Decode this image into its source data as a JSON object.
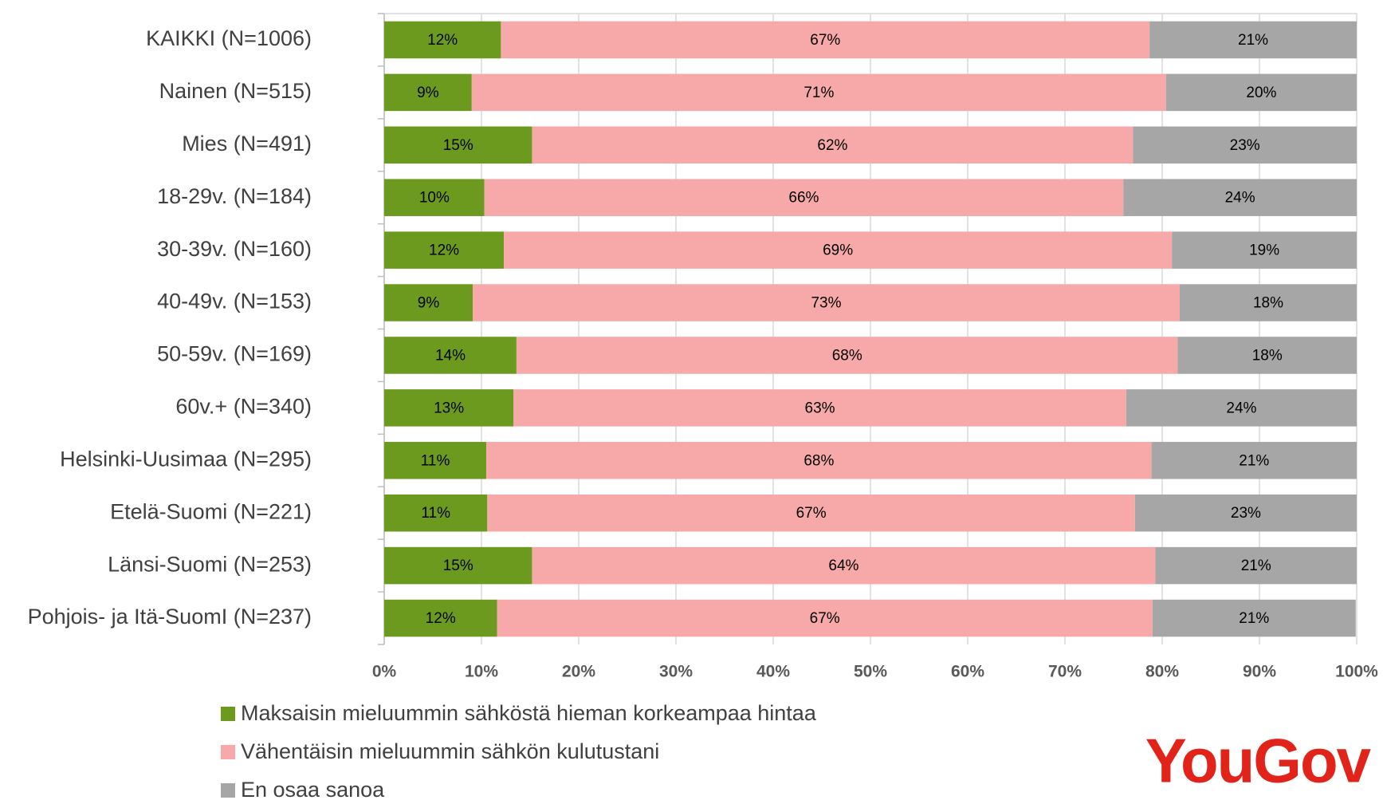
{
  "chart_data": {
    "type": "stacked-bar-horizontal",
    "categories": [
      "KAIKKI (N=1006)",
      "Nainen (N=515)",
      "Mies (N=491)",
      "18-29v. (N=184)",
      "30-39v. (N=160)",
      "40-49v. (N=153)",
      "50-59v. (N=169)",
      "60v.+ (N=340)",
      "Helsinki-Uusimaa (N=295)",
      "Etelä-Suomi (N=221)",
      "Länsi-Suomi (N=253)",
      "Pohjois- ja Itä-SuomI (N=237)"
    ],
    "series": [
      {
        "name": "Maksaisin mieluummin sähköstä hieman korkeampaa hintaa",
        "color": "#6b9a1f",
        "values": [
          12.0,
          9.0,
          15.2,
          10.3,
          12.3,
          9.1,
          13.6,
          13.3,
          10.5,
          10.6,
          15.2,
          11.6
        ],
        "value_labels": [
          "12%",
          "9%",
          "15%",
          "10%",
          "12%",
          "9%",
          "14%",
          "13%",
          "11%",
          "11%",
          "15%",
          "12%"
        ]
      },
      {
        "name": "Vähentäisin mieluummin sähkön kulutustani",
        "color": "#f6a9a8",
        "values": [
          66.7,
          71.4,
          61.8,
          65.7,
          68.7,
          72.7,
          68.0,
          63.0,
          68.4,
          66.6,
          64.1,
          67.4
        ],
        "value_labels": [
          "67%",
          "71%",
          "62%",
          "66%",
          "69%",
          "73%",
          "68%",
          "63%",
          "68%",
          "67%",
          "64%",
          "67%"
        ]
      },
      {
        "name": "En osaa sanoa",
        "color": "#a6a6a6",
        "values": [
          21.3,
          19.6,
          23.0,
          24.0,
          19.0,
          18.2,
          18.4,
          23.7,
          21.1,
          22.8,
          20.7,
          20.9
        ],
        "value_labels": [
          "21%",
          "20%",
          "23%",
          "24%",
          "19%",
          "18%",
          "18%",
          "24%",
          "21%",
          "23%",
          "21%",
          "21%"
        ]
      }
    ],
    "xlim": [
      0,
      100
    ],
    "xticks": [
      {
        "value": 0,
        "label": "0%"
      },
      {
        "value": 10,
        "label": "10%"
      },
      {
        "value": 20,
        "label": "20%"
      },
      {
        "value": 30,
        "label": "30%"
      },
      {
        "value": 40,
        "label": "40%"
      },
      {
        "value": 50,
        "label": "50%"
      },
      {
        "value": 60,
        "label": "60%"
      },
      {
        "value": 70,
        "label": "70%"
      },
      {
        "value": 80,
        "label": "80%"
      },
      {
        "value": 90,
        "label": "90%"
      },
      {
        "value": 100,
        "label": "100%"
      }
    ],
    "grid": true,
    "legend": "bottom-left"
  },
  "logo": "YouGov"
}
